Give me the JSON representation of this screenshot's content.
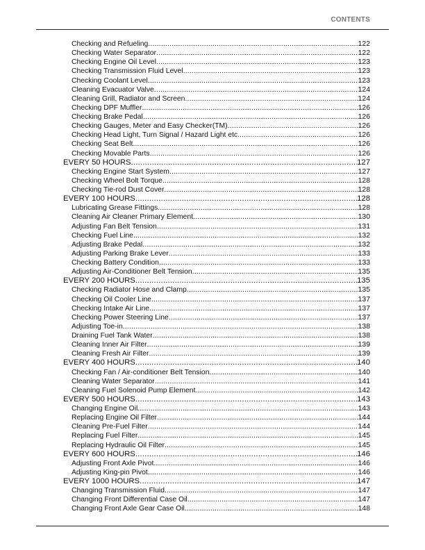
{
  "header": {
    "title": "CONTENTS"
  },
  "toc": [
    {
      "level": "sub",
      "title": "Checking and Refueling",
      "page": "122"
    },
    {
      "level": "sub",
      "title": "Checking Water Separator",
      "page": "122"
    },
    {
      "level": "sub",
      "title": "Checking Engine Oil Level",
      "page": "123"
    },
    {
      "level": "sub",
      "title": "Checking Transmission Fluid Level",
      "page": "123"
    },
    {
      "level": "sub",
      "title": "Checking Coolant Level",
      "page": "123"
    },
    {
      "level": "sub",
      "title": "Cleaning Evacuator Valve",
      "page": "124"
    },
    {
      "level": "sub",
      "title": "Cleaning Grill, Radiator and Screen",
      "page": "124"
    },
    {
      "level": "sub",
      "title": "Checking DPF Muffler",
      "page": "126"
    },
    {
      "level": "sub",
      "title": "Checking Brake Pedal",
      "page": "126"
    },
    {
      "level": "sub",
      "title": "Checking Gauges, Meter and Easy Checker(TM)",
      "page": "126"
    },
    {
      "level": "sub",
      "title": "Checking Head Light, Turn Signal / Hazard Light etc.",
      "page": "126"
    },
    {
      "level": "sub",
      "title": "Checking Seat Belt",
      "page": "126"
    },
    {
      "level": "sub",
      "title": "Checking Movable Parts",
      "page": "126"
    },
    {
      "level": "sec",
      "title": "EVERY 50 HOURS",
      "page": "127"
    },
    {
      "level": "sub",
      "title": "Checking Engine Start System",
      "page": "127"
    },
    {
      "level": "sub",
      "title": "Checking Wheel Bolt Torque",
      "page": "128"
    },
    {
      "level": "sub",
      "title": "Checking Tie-rod Dust Cover",
      "page": "128"
    },
    {
      "level": "sec",
      "title": "EVERY 100 HOURS",
      "page": "128"
    },
    {
      "level": "sub",
      "title": "Lubricating Grease Fittings",
      "page": "128"
    },
    {
      "level": "sub",
      "title": "Cleaning Air Cleaner Primary Element",
      "page": "130"
    },
    {
      "level": "sub",
      "title": "Adjusting Fan Belt Tension",
      "page": "131"
    },
    {
      "level": "sub",
      "title": "Checking Fuel Line",
      "page": "132"
    },
    {
      "level": "sub",
      "title": "Adjusting Brake Pedal",
      "page": "132"
    },
    {
      "level": "sub",
      "title": "Adjusting Parking Brake Lever",
      "page": "133"
    },
    {
      "level": "sub",
      "title": "Checking Battery Condition",
      "page": "133"
    },
    {
      "level": "sub",
      "title": "Adjusting Air-Conditioner Belt Tension",
      "page": "135"
    },
    {
      "level": "sec",
      "title": "EVERY 200 HOURS",
      "page": "135"
    },
    {
      "level": "sub",
      "title": "Checking Radiator Hose and Clamp",
      "page": "135"
    },
    {
      "level": "sub",
      "title": "Checking Oil Cooler Line",
      "page": "137"
    },
    {
      "level": "sub",
      "title": "Checking Intake Air Line",
      "page": "137"
    },
    {
      "level": "sub",
      "title": "Checking Power Steering Line",
      "page": "137"
    },
    {
      "level": "sub",
      "title": "Adjusting Toe-in",
      "page": "138"
    },
    {
      "level": "sub",
      "title": "Draining Fuel Tank Water",
      "page": "138"
    },
    {
      "level": "sub",
      "title": "Cleaning Inner Air Filter",
      "page": "139"
    },
    {
      "level": "sub",
      "title": "Cleaning Fresh Air Filter",
      "page": "139"
    },
    {
      "level": "sec",
      "title": "EVERY 400 HOURS",
      "page": "140"
    },
    {
      "level": "sub",
      "title": "Checking Fan / Air-conditioner Belt Tension",
      "page": "140"
    },
    {
      "level": "sub",
      "title": "Cleaning Water Separator",
      "page": "141"
    },
    {
      "level": "sub",
      "title": "Cleaning Fuel Solenoid Pump Element",
      "page": "142"
    },
    {
      "level": "sec",
      "title": "EVERY 500 HOURS",
      "page": "143"
    },
    {
      "level": "sub",
      "title": "Changing Engine Oil",
      "page": "143"
    },
    {
      "level": "sub",
      "title": "Replacing Engine Oil Filter",
      "page": "144"
    },
    {
      "level": "sub",
      "title": "Cleaning Pre-Fuel Filter",
      "page": "144"
    },
    {
      "level": "sub",
      "title": "Replacing Fuel Filter",
      "page": "145"
    },
    {
      "level": "sub",
      "title": "Replacing Hydraulic Oil Filter",
      "page": "145"
    },
    {
      "level": "sec",
      "title": "EVERY 600 HOURS",
      "page": "146"
    },
    {
      "level": "sub",
      "title": "Adjusting Front Axle Pivot",
      "page": "146"
    },
    {
      "level": "sub",
      "title": "Adjusting King-pin Pivot",
      "page": "146"
    },
    {
      "level": "sec",
      "title": "EVERY 1000 HOURS",
      "page": "147"
    },
    {
      "level": "sub",
      "title": "Changing Transmission Fluid",
      "page": "147"
    },
    {
      "level": "sub",
      "title": "Changing Front Differential Case Oil",
      "page": "147"
    },
    {
      "level": "sub",
      "title": "Changing Front Axle Gear Case Oil",
      "page": "148"
    }
  ]
}
